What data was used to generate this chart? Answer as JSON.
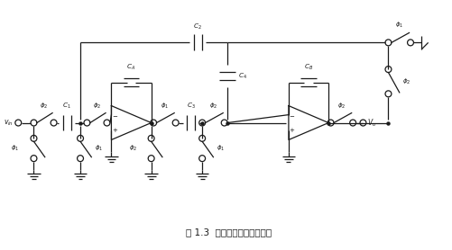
{
  "title": "图 1.3  二阶开关电容滤波器节",
  "bg_color": "#ffffff",
  "line_color": "#1a1a1a",
  "fig_width": 5.02,
  "fig_height": 2.78,
  "dpi": 100
}
